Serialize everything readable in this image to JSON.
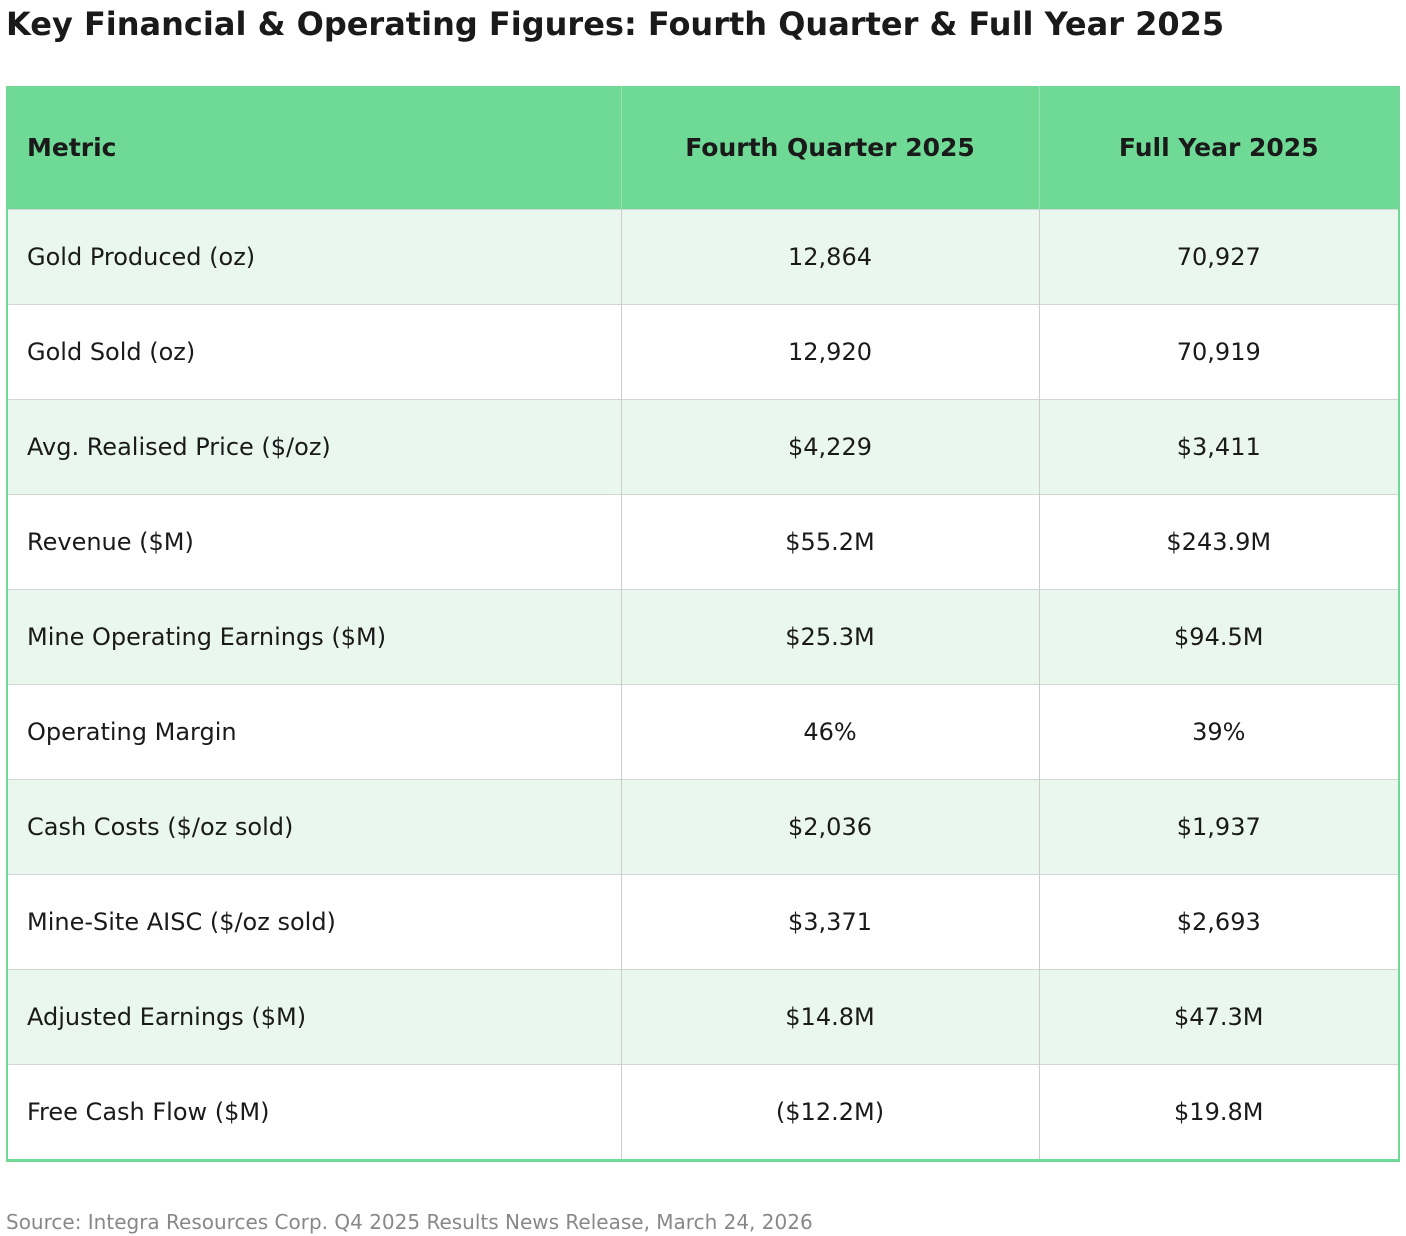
{
  "chart_data": {
    "type": "table",
    "title": "Key Financial & Operating Figures: Fourth Quarter & Full Year 2025",
    "columns": [
      "Metric",
      "Fourth Quarter 2025",
      "Full Year 2025"
    ],
    "rows": [
      [
        "Gold Produced (oz)",
        "12,864",
        "70,927"
      ],
      [
        "Gold Sold (oz)",
        "12,920",
        "70,919"
      ],
      [
        "Avg. Realised Price ($/oz)",
        "$4,229",
        "$3,411"
      ],
      [
        "Revenue ($M)",
        "$55.2M",
        "$243.9M"
      ],
      [
        "Mine Operating Earnings ($M)",
        "$25.3M",
        "$94.5M"
      ],
      [
        "Operating Margin",
        "46%",
        "39%"
      ],
      [
        "Cash Costs ($/oz sold)",
        "$2,036",
        "$1,937"
      ],
      [
        "Mine-Site AISC ($/oz sold)",
        "$3,371",
        "$2,693"
      ],
      [
        "Adjusted Earnings ($M)",
        "$14.8M",
        "$47.3M"
      ],
      [
        "Free Cash Flow ($M)",
        "($12.2M)",
        "$19.8M"
      ]
    ],
    "source": "Source: Integra Resources Corp. Q4 2025 Results News Release, March 24, 2026"
  },
  "colors": {
    "header_background": "#6fd996",
    "odd_row_background": "#eaf7ee",
    "even_row_background": "#ffffff",
    "source_text": "#888888"
  }
}
